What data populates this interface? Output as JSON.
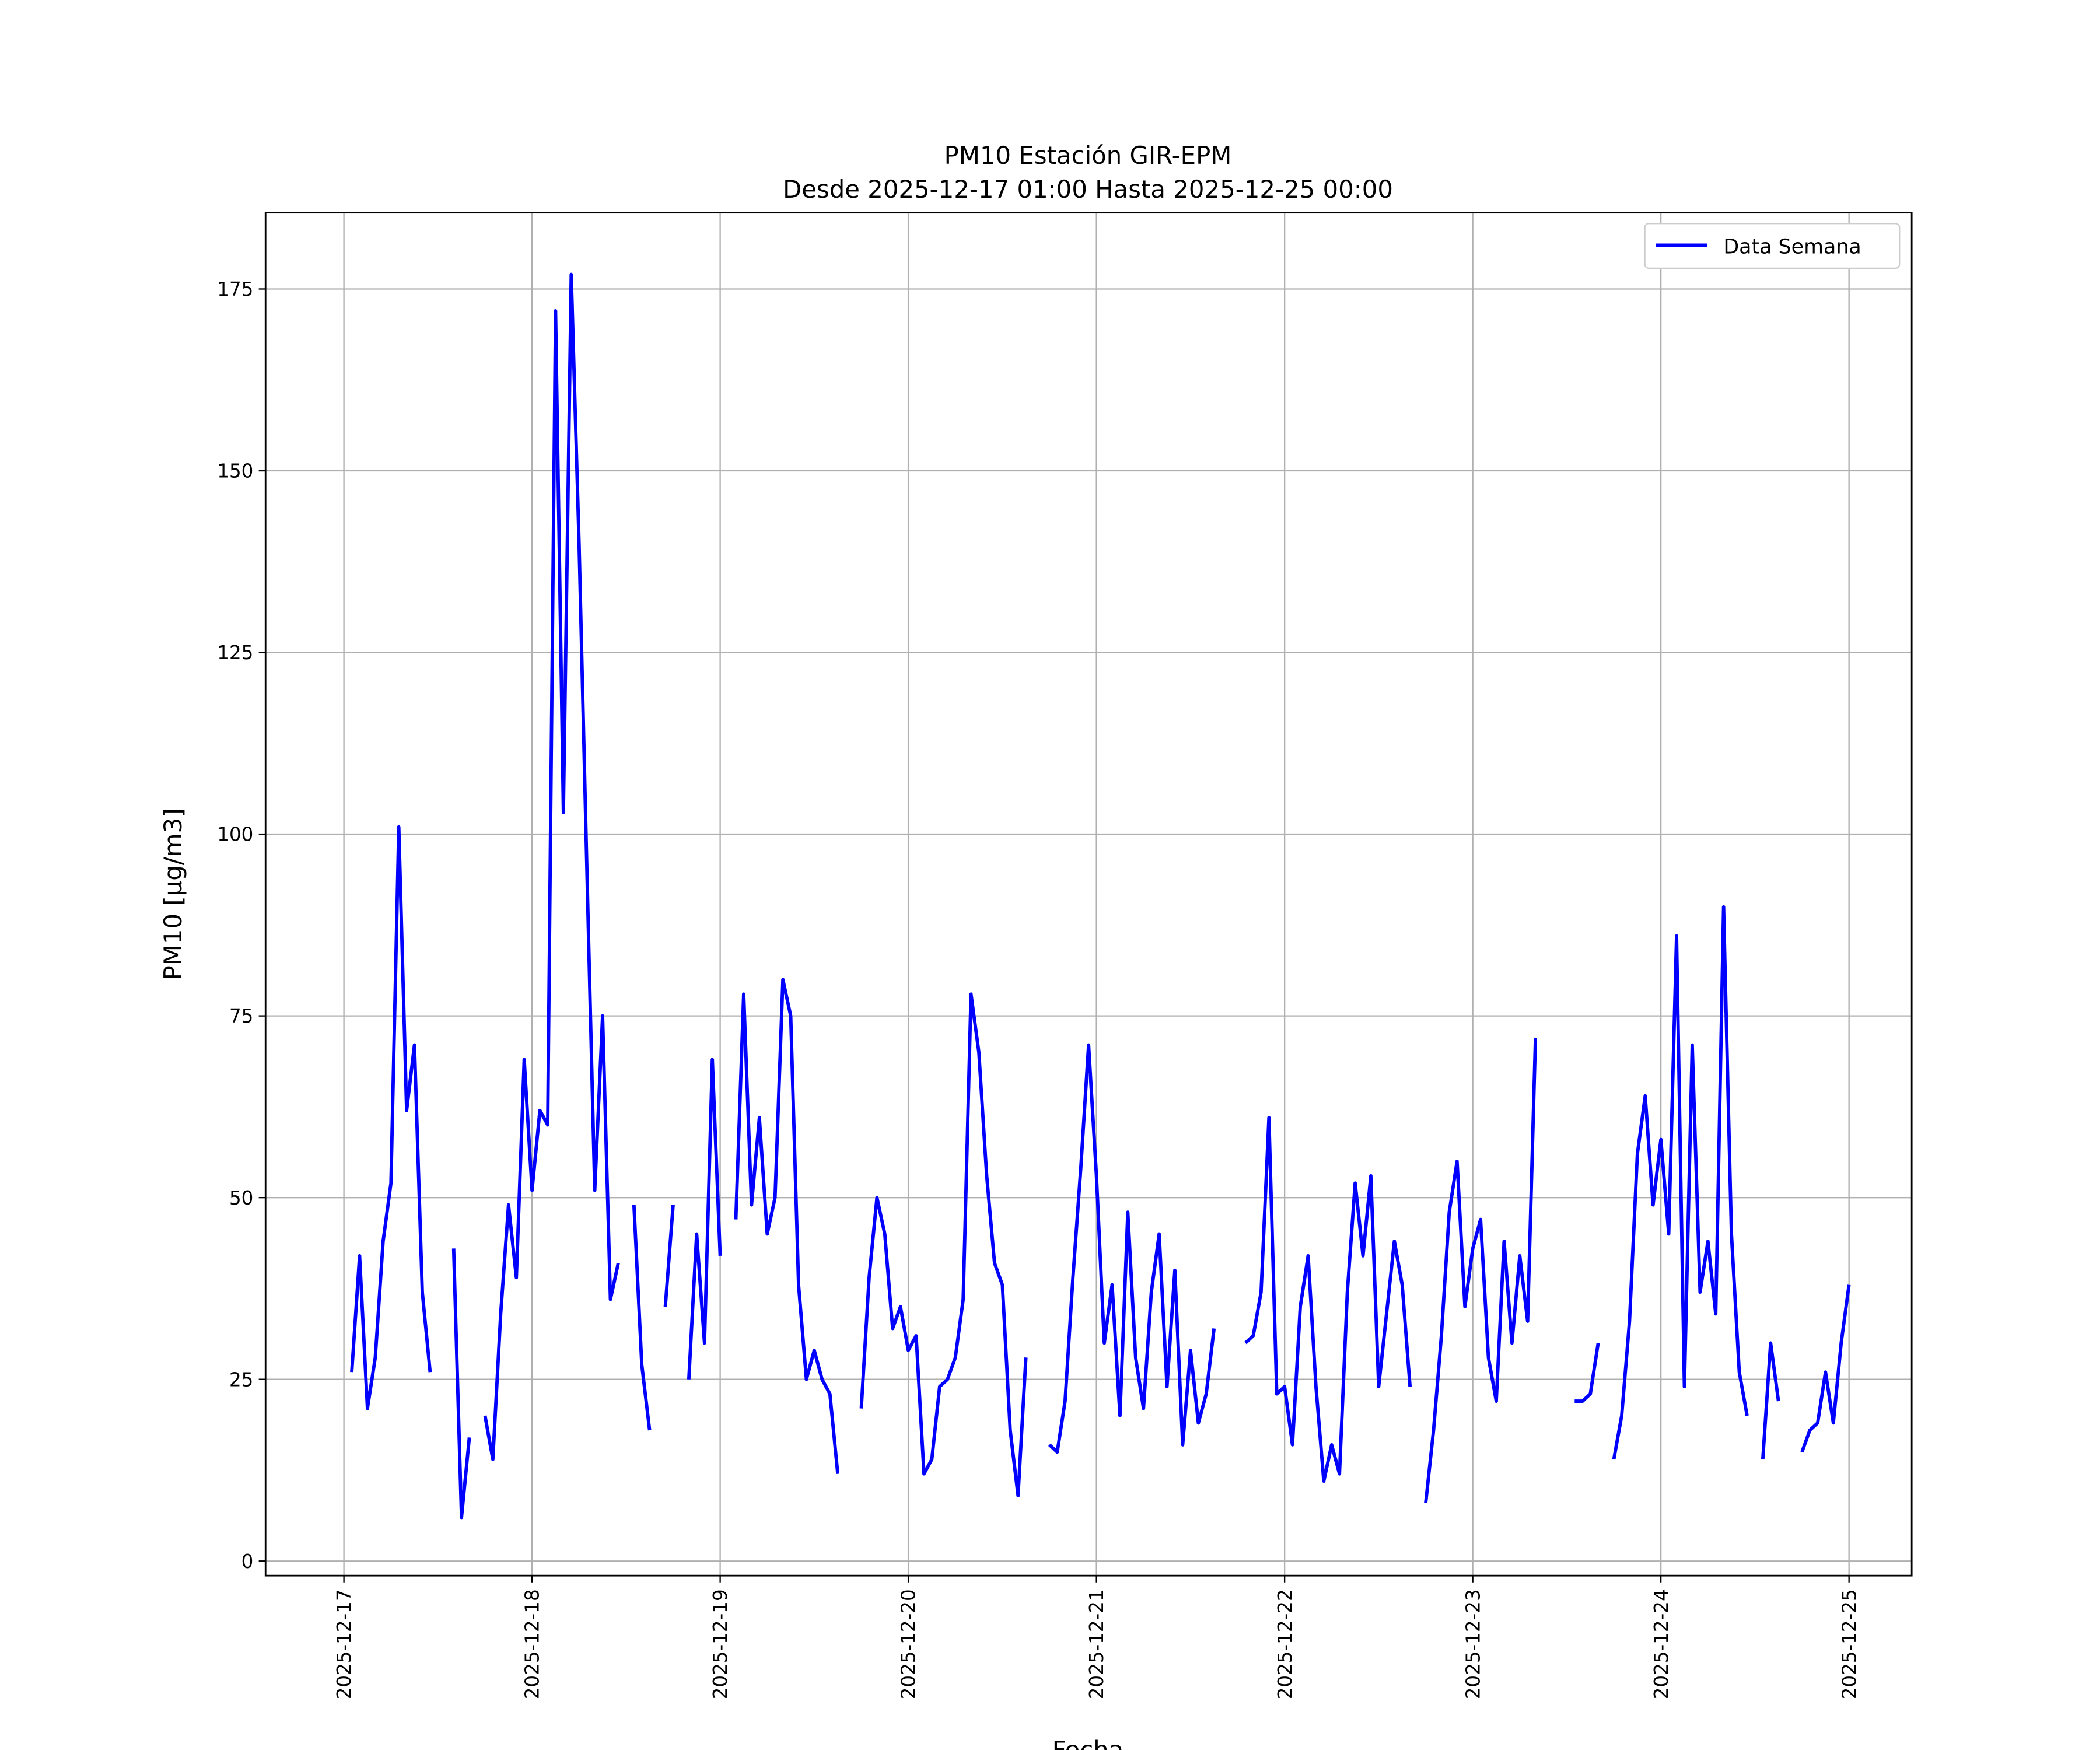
{
  "chart_data": {
    "type": "line",
    "title": "PM10 Estación GIR-EPM",
    "subtitle": "Desde 2025-12-17 01:00 Hasta 2025-12-25 00:00",
    "xlabel": "Fecha",
    "ylabel": "PM10 [μg/m3]",
    "xlim": [
      "2025-12-16 14:00",
      "2025-12-25 08:00"
    ],
    "ylim": [
      -2,
      185.5
    ],
    "grid": true,
    "legend_placement": "top-right",
    "x_ticks": [
      "2025-12-17",
      "2025-12-18",
      "2025-12-19",
      "2025-12-20",
      "2025-12-21",
      "2025-12-22",
      "2025-12-23",
      "2025-12-24",
      "2025-12-25"
    ],
    "y_ticks": [
      0,
      25,
      50,
      75,
      100,
      125,
      150,
      175
    ],
    "series": [
      {
        "name": "Data Semana",
        "color": "#0000ff",
        "points": [
          [
            "2025-12-17 01:00",
            26
          ],
          [
            "2025-12-17 02:00",
            42
          ],
          [
            "2025-12-17 03:00",
            21
          ],
          [
            "2025-12-17 04:00",
            28
          ],
          [
            "2025-12-17 05:00",
            44
          ],
          [
            "2025-12-17 06:00",
            52
          ],
          [
            "2025-12-17 07:00",
            101
          ],
          [
            "2025-12-17 08:00",
            62
          ],
          [
            "2025-12-17 09:00",
            71
          ],
          [
            "2025-12-17 10:00",
            37
          ],
          [
            "2025-12-17 11:00",
            26
          ],
          [
            "2025-12-17 14:00",
            43
          ],
          [
            "2025-12-17 15:00",
            6
          ],
          [
            "2025-12-17 16:00",
            17
          ],
          [
            "2025-12-17 18:00",
            20
          ],
          [
            "2025-12-17 19:00",
            14
          ],
          [
            "2025-12-17 20:00",
            34
          ],
          [
            "2025-12-17 21:00",
            49
          ],
          [
            "2025-12-17 22:00",
            39
          ],
          [
            "2025-12-17 23:00",
            69
          ],
          [
            "2025-12-18 00:00",
            51
          ],
          [
            "2025-12-18 01:00",
            62
          ],
          [
            "2025-12-18 02:00",
            60
          ],
          [
            "2025-12-18 03:00",
            172
          ],
          [
            "2025-12-18 04:00",
            103
          ],
          [
            "2025-12-18 05:00",
            177
          ],
          [
            "2025-12-18 06:00",
            140
          ],
          [
            "2025-12-18 07:00",
            95
          ],
          [
            "2025-12-18 08:00",
            51
          ],
          [
            "2025-12-18 09:00",
            75
          ],
          [
            "2025-12-18 10:00",
            36
          ],
          [
            "2025-12-18 11:00",
            41
          ],
          [
            "2025-12-18 13:00",
            49
          ],
          [
            "2025-12-18 14:00",
            27
          ],
          [
            "2025-12-18 15:00",
            18
          ],
          [
            "2025-12-18 17:00",
            35
          ],
          [
            "2025-12-18 18:00",
            49
          ],
          [
            "2025-12-18 20:00",
            25
          ],
          [
            "2025-12-18 21:00",
            45
          ],
          [
            "2025-12-18 22:00",
            30
          ],
          [
            "2025-12-18 23:00",
            69
          ],
          [
            "2025-12-19 00:00",
            42
          ],
          [
            "2025-12-19 02:00",
            47
          ],
          [
            "2025-12-19 03:00",
            78
          ],
          [
            "2025-12-19 04:00",
            49
          ],
          [
            "2025-12-19 05:00",
            61
          ],
          [
            "2025-12-19 06:00",
            45
          ],
          [
            "2025-12-19 07:00",
            50
          ],
          [
            "2025-12-19 08:00",
            80
          ],
          [
            "2025-12-19 09:00",
            75
          ],
          [
            "2025-12-19 10:00",
            38
          ],
          [
            "2025-12-19 11:00",
            25
          ],
          [
            "2025-12-19 12:00",
            29
          ],
          [
            "2025-12-19 13:00",
            25
          ],
          [
            "2025-12-19 14:00",
            23
          ],
          [
            "2025-12-19 15:00",
            12
          ],
          [
            "2025-12-19 18:00",
            21
          ],
          [
            "2025-12-19 19:00",
            39
          ],
          [
            "2025-12-19 20:00",
            50
          ],
          [
            "2025-12-19 21:00",
            45
          ],
          [
            "2025-12-19 22:00",
            32
          ],
          [
            "2025-12-19 23:00",
            35
          ],
          [
            "2025-12-20 00:00",
            29
          ],
          [
            "2025-12-20 01:00",
            31
          ],
          [
            "2025-12-20 02:00",
            12
          ],
          [
            "2025-12-20 03:00",
            14
          ],
          [
            "2025-12-20 04:00",
            24
          ],
          [
            "2025-12-20 05:00",
            25
          ],
          [
            "2025-12-20 06:00",
            28
          ],
          [
            "2025-12-20 07:00",
            36
          ],
          [
            "2025-12-20 08:00",
            78
          ],
          [
            "2025-12-20 09:00",
            70
          ],
          [
            "2025-12-20 10:00",
            53
          ],
          [
            "2025-12-20 11:00",
            41
          ],
          [
            "2025-12-20 12:00",
            38
          ],
          [
            "2025-12-20 13:00",
            18
          ],
          [
            "2025-12-20 14:00",
            9
          ],
          [
            "2025-12-20 15:00",
            28
          ],
          [
            "2025-12-20 18:00",
            16
          ],
          [
            "2025-12-20 19:00",
            15
          ],
          [
            "2025-12-20 20:00",
            22
          ],
          [
            "2025-12-20 21:00",
            39
          ],
          [
            "2025-12-20 22:00",
            54
          ],
          [
            "2025-12-20 23:00",
            71
          ],
          [
            "2025-12-21 00:00",
            53
          ],
          [
            "2025-12-21 01:00",
            30
          ],
          [
            "2025-12-21 02:00",
            38
          ],
          [
            "2025-12-21 03:00",
            20
          ],
          [
            "2025-12-21 04:00",
            48
          ],
          [
            "2025-12-21 05:00",
            28
          ],
          [
            "2025-12-21 06:00",
            21
          ],
          [
            "2025-12-21 07:00",
            37
          ],
          [
            "2025-12-21 08:00",
            45
          ],
          [
            "2025-12-21 09:00",
            24
          ],
          [
            "2025-12-21 10:00",
            40
          ],
          [
            "2025-12-21 11:00",
            16
          ],
          [
            "2025-12-21 12:00",
            29
          ],
          [
            "2025-12-21 13:00",
            19
          ],
          [
            "2025-12-21 14:00",
            23
          ],
          [
            "2025-12-21 15:00",
            32
          ],
          [
            "2025-12-21 19:00",
            30
          ],
          [
            "2025-12-21 20:00",
            31
          ],
          [
            "2025-12-21 21:00",
            37
          ],
          [
            "2025-12-21 22:00",
            61
          ],
          [
            "2025-12-21 23:00",
            23
          ],
          [
            "2025-12-22 00:00",
            24
          ],
          [
            "2025-12-22 01:00",
            16
          ],
          [
            "2025-12-22 02:00",
            35
          ],
          [
            "2025-12-22 03:00",
            42
          ],
          [
            "2025-12-22 04:00",
            24
          ],
          [
            "2025-12-22 05:00",
            11
          ],
          [
            "2025-12-22 06:00",
            16
          ],
          [
            "2025-12-22 07:00",
            12
          ],
          [
            "2025-12-22 08:00",
            37
          ],
          [
            "2025-12-22 09:00",
            52
          ],
          [
            "2025-12-22 10:00",
            42
          ],
          [
            "2025-12-22 11:00",
            53
          ],
          [
            "2025-12-22 12:00",
            24
          ],
          [
            "2025-12-22 13:00",
            34
          ],
          [
            "2025-12-22 14:00",
            44
          ],
          [
            "2025-12-22 15:00",
            38
          ],
          [
            "2025-12-22 16:00",
            24
          ],
          [
            "2025-12-22 18:00",
            8
          ],
          [
            "2025-12-22 19:00",
            18
          ],
          [
            "2025-12-22 20:00",
            31
          ],
          [
            "2025-12-22 21:00",
            48
          ],
          [
            "2025-12-22 22:00",
            55
          ],
          [
            "2025-12-22 23:00",
            35
          ],
          [
            "2025-12-23 00:00",
            43
          ],
          [
            "2025-12-23 01:00",
            47
          ],
          [
            "2025-12-23 02:00",
            28
          ],
          [
            "2025-12-23 03:00",
            22
          ],
          [
            "2025-12-23 04:00",
            44
          ],
          [
            "2025-12-23 05:00",
            30
          ],
          [
            "2025-12-23 06:00",
            42
          ],
          [
            "2025-12-23 07:00",
            33
          ],
          [
            "2025-12-23 08:00",
            72
          ],
          [
            "2025-12-23 13:00",
            22
          ],
          [
            "2025-12-23 14:00",
            22
          ],
          [
            "2025-12-23 15:00",
            23
          ],
          [
            "2025-12-23 16:00",
            30
          ],
          [
            "2025-12-23 18:00",
            14
          ],
          [
            "2025-12-23 19:00",
            20
          ],
          [
            "2025-12-23 20:00",
            33
          ],
          [
            "2025-12-23 21:00",
            56
          ],
          [
            "2025-12-23 22:00",
            64
          ],
          [
            "2025-12-23 23:00",
            49
          ],
          [
            "2025-12-24 00:00",
            58
          ],
          [
            "2025-12-24 01:00",
            45
          ],
          [
            "2025-12-24 02:00",
            86
          ],
          [
            "2025-12-24 03:00",
            24
          ],
          [
            "2025-12-24 04:00",
            71
          ],
          [
            "2025-12-24 05:00",
            37
          ],
          [
            "2025-12-24 06:00",
            44
          ],
          [
            "2025-12-24 07:00",
            34
          ],
          [
            "2025-12-24 08:00",
            90
          ],
          [
            "2025-12-24 09:00",
            45
          ],
          [
            "2025-12-24 10:00",
            26
          ],
          [
            "2025-12-24 11:00",
            20
          ],
          [
            "2025-12-24 13:00",
            14
          ],
          [
            "2025-12-24 14:00",
            30
          ],
          [
            "2025-12-24 15:00",
            22
          ],
          [
            "2025-12-24 18:00",
            15
          ],
          [
            "2025-12-24 19:00",
            18
          ],
          [
            "2025-12-24 20:00",
            19
          ],
          [
            "2025-12-24 21:00",
            26
          ],
          [
            "2025-12-24 22:00",
            19
          ],
          [
            "2025-12-24 23:00",
            30
          ],
          [
            "2025-12-25 00:00",
            38
          ]
        ]
      }
    ]
  }
}
